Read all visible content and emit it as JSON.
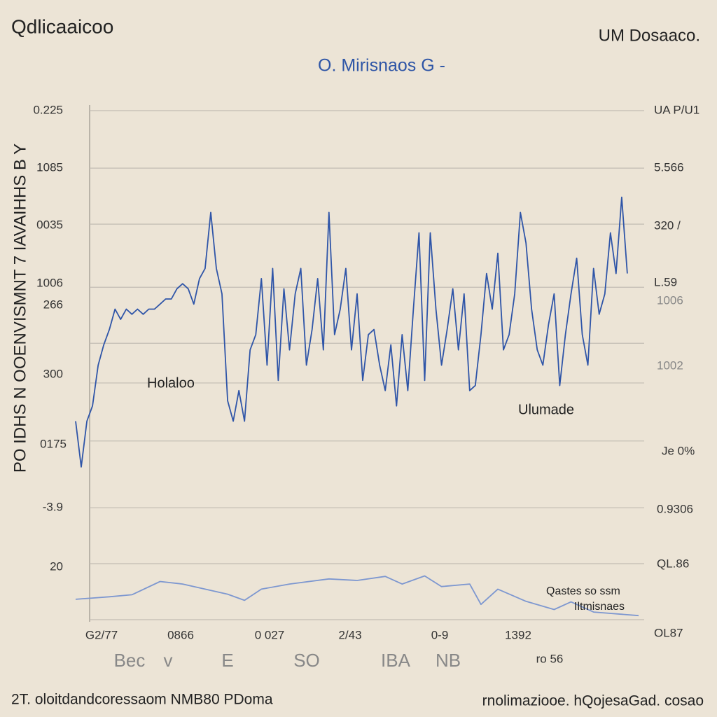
{
  "header": {
    "left_title": "Qdlicaaicoo",
    "right_title": "UM Dosaaco."
  },
  "chart_data": {
    "type": "line",
    "title": "O. Mirisnaos  G -",
    "y_axis_label": "PO IDHS N OOENVISMNT 7 IAVAIHHS B Y",
    "left_axis_labels": [
      "0.225",
      "1085",
      "0035",
      "1006",
      "266",
      "300",
      "0175",
      "-3.9",
      "20"
    ],
    "right_axis_labels": [
      "UA P/U1",
      "5.566",
      "320 /",
      "L.59",
      "1006",
      "1002",
      "Je 0%",
      "0.9306",
      "QL.86",
      "OL87"
    ],
    "x_labels": [
      "G2/77",
      "0866",
      "0 027",
      "2/43",
      "0-9",
      "1392"
    ],
    "x_sublabels": [
      "Bec",
      "v",
      "E",
      "SO",
      "IBA",
      "NB",
      "ro 56"
    ],
    "annotations": [
      "Holaloo",
      "Ulumade",
      "Qastes so ssm",
      "Iltmisnaes"
    ],
    "footer": {
      "left": "2T. oloitdandcoressaom NMB80 PDoma",
      "right": "rnolimaziooe. hQojesaGad. cosao"
    },
    "xlim": [
      0,
      100
    ],
    "ylim": [
      0,
      100
    ],
    "yticks": [
      0,
      11,
      22,
      35.1,
      46.5,
      54.3,
      65.3,
      77.7,
      88.7,
      100
    ],
    "grid": true,
    "series": [
      {
        "color": "#2f55a8",
        "x": [
          0,
          1,
          2,
          3,
          4,
          5,
          6,
          7,
          8,
          9,
          10,
          11,
          12,
          13,
          14,
          15,
          16,
          17,
          18,
          19,
          20,
          21,
          22,
          23,
          24,
          25,
          26,
          27,
          28,
          29,
          30,
          31,
          32,
          33,
          34,
          35,
          36,
          37,
          38,
          39,
          40,
          41,
          42,
          43,
          44,
          45,
          46,
          47,
          48,
          49,
          50,
          51,
          52,
          53,
          54,
          55,
          56,
          57,
          58,
          59,
          60,
          61,
          62,
          63,
          64,
          65,
          66,
          67,
          68,
          69,
          70,
          71,
          72,
          73,
          74,
          75,
          76,
          77,
          78,
          79,
          80,
          81,
          82,
          83,
          84,
          85,
          86,
          87,
          88,
          89,
          90,
          91,
          92,
          93,
          94,
          95,
          96,
          97,
          98
        ],
        "values": [
          39,
          30,
          39,
          42,
          50,
          54,
          57,
          61,
          59,
          61,
          60,
          61,
          60,
          61,
          61,
          62,
          63,
          63,
          65,
          66,
          65,
          62,
          67,
          69,
          80,
          69,
          64,
          43,
          39,
          45,
          39,
          53,
          56,
          67,
          50,
          69,
          47,
          65,
          53,
          64,
          69,
          50,
          57,
          67,
          53,
          80,
          56,
          61,
          69,
          53,
          64,
          47,
          56,
          57,
          50,
          45,
          54,
          42,
          56,
          45,
          61,
          76,
          47,
          76,
          61,
          50,
          57,
          65,
          53,
          64,
          45,
          46,
          56,
          68,
          61,
          72,
          53,
          56,
          64,
          80,
          74,
          61,
          53,
          50,
          58,
          64,
          46,
          56,
          64,
          71,
          56,
          50,
          69,
          60,
          64,
          76,
          68,
          83,
          68
        ]
      },
      {
        "color": "#7d97d0",
        "x": [
          0,
          6,
          10,
          15,
          19,
          27,
          30,
          33,
          38,
          45,
          50,
          55,
          58,
          62,
          65,
          70,
          72,
          75,
          80,
          85,
          88,
          92,
          100
        ],
        "values": [
          4,
          4.5,
          4.9,
          7.5,
          7,
          5,
          3.8,
          6,
          7,
          8,
          7.7,
          8.5,
          7,
          8.6,
          6.5,
          7,
          3,
          6,
          3.6,
          2,
          3.5,
          1.5,
          0.8
        ]
      }
    ]
  }
}
